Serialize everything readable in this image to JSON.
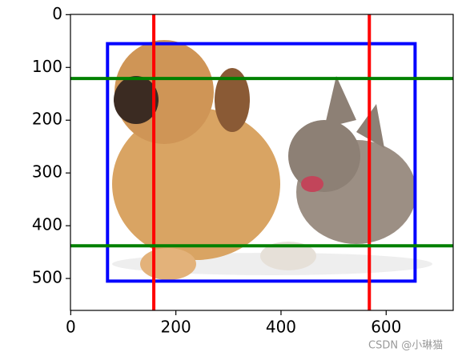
{
  "chart_data": {
    "type": "image",
    "xlim": [
      -0.5,
      727.5
    ],
    "ylim": [
      560.5,
      -0.5
    ],
    "xticks": [
      0,
      200,
      400,
      600
    ],
    "yticks": [
      0,
      100,
      200,
      300,
      400,
      500
    ],
    "boxes": [
      {
        "color": "blue",
        "x0": 70,
        "y0": 55,
        "x1": 655,
        "y1": 505
      }
    ],
    "vlines": [
      {
        "x": 158,
        "color": "red"
      },
      {
        "x": 568,
        "color": "red"
      }
    ],
    "hlines": [
      {
        "y": 121,
        "color": "green"
      },
      {
        "y": 438,
        "color": "green"
      }
    ]
  },
  "watermark": "CSDN @小琳猫"
}
